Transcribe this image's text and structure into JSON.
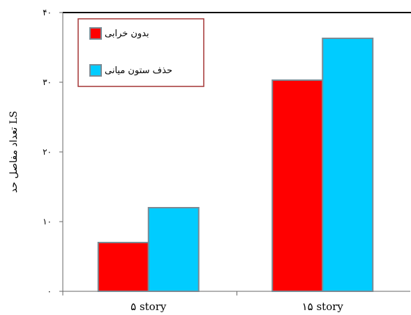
{
  "chart_data": {
    "type": "bar",
    "categories": [
      "۵ story",
      "۱۵ story"
    ],
    "series": [
      {
        "name": "بدون خرابی",
        "values": [
          7,
          30.3
        ],
        "color": "#ff0000"
      },
      {
        "name": "حذف ستون میانی",
        "values": [
          12,
          36.3
        ],
        "color": "#00ccff"
      }
    ],
    "ylabel": "تعداد مفاصل حد LS",
    "xlabel": "",
    "ylim": [
      0,
      40
    ],
    "yticks": [
      0,
      10,
      20,
      30,
      40
    ],
    "ytick_labels": [
      "۰",
      "۱۰",
      "۲۰",
      "۳۰",
      "۴۰"
    ],
    "legend_position": "top-left",
    "grid": false
  }
}
